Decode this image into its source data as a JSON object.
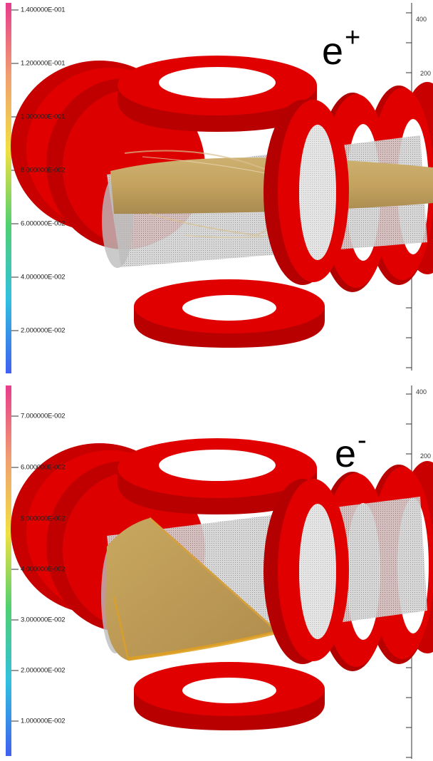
{
  "panels": [
    {
      "species": "e",
      "charge": "+",
      "axis_ticks": [
        "400",
        "200"
      ],
      "colorbar_labels": [
        "1.400000E-001",
        "1.200000E-001",
        "1.000000E-001",
        "8.000000E-002",
        "6.000000E-002",
        "4.000000E-002",
        "2.000000E-002"
      ]
    },
    {
      "species": "e",
      "charge": "-",
      "axis_ticks": [
        "400",
        "200"
      ],
      "colorbar_labels": [
        "7.000000E-002",
        "6.000000E-002",
        "5.000000E-002",
        "4.000000E-002",
        "3.000000E-002",
        "2.000000E-002",
        "1.000000E-002"
      ]
    }
  ],
  "colors": {
    "magnet_red": "#e00000",
    "magnet_dark": "#a80000",
    "beam_gold": "#c8a85a",
    "particle_orange": "#e0a020",
    "pipe_gray": "#c8c8c8"
  },
  "colorbar_gradient": [
    "#e83c8c",
    "#f0a070",
    "#f0e040",
    "#50d070",
    "#30c0e0",
    "#4060f0"
  ]
}
